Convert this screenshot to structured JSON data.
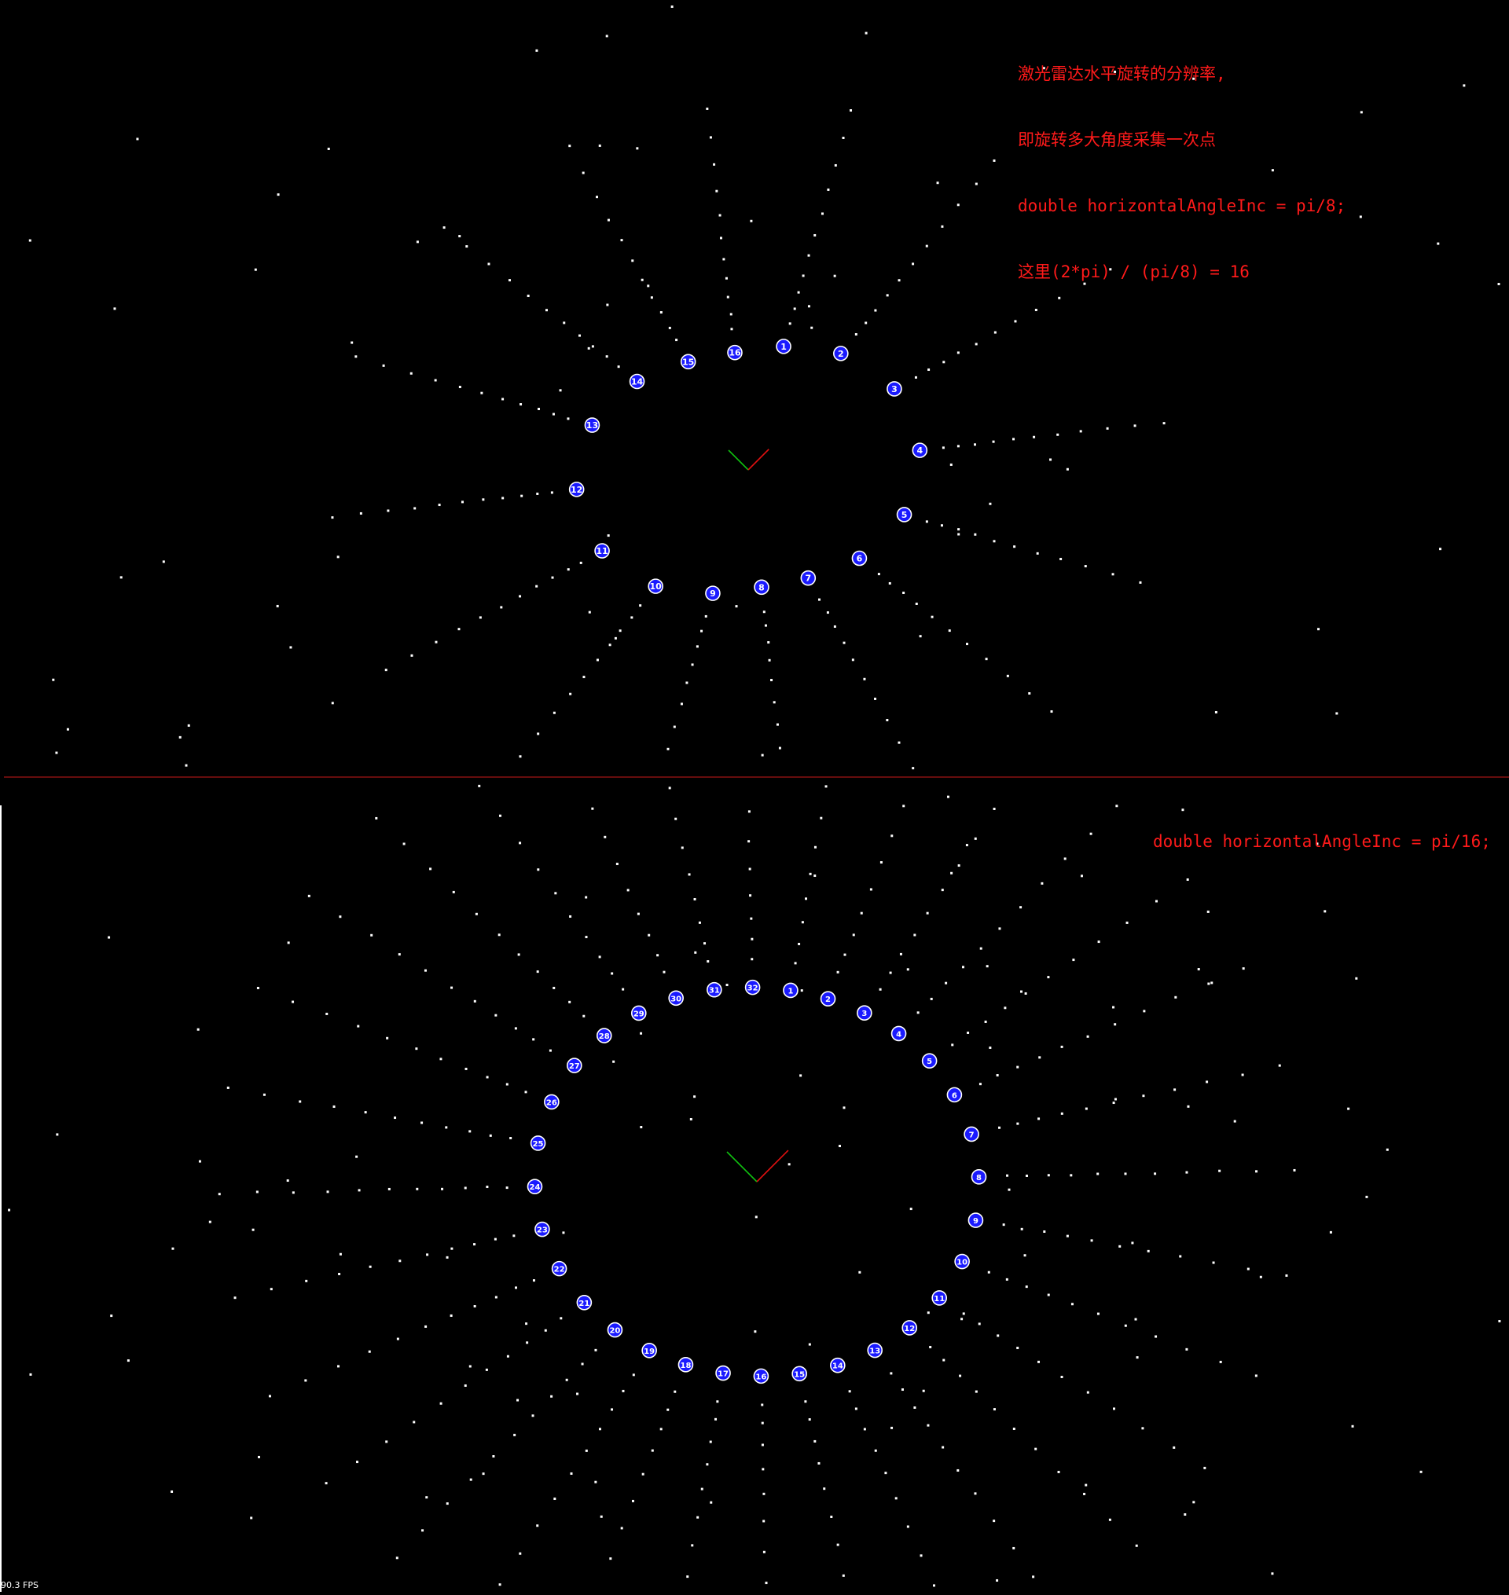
{
  "window": {
    "title": ""
  },
  "annotations": {
    "top_lines": [
      "激光雷达水平旋转的分辨率,",
      "即旋转多大角度采集一次点",
      "double horizontalAngleInc = pi/8;",
      "这里(2*pi) / (pi/8) = 16"
    ],
    "bottom_line": "double horizontalAngleInc = pi/16;"
  },
  "fps_label": "90.3 FPS",
  "colors": {
    "background": "#000000",
    "points": "#ffffff",
    "marker_fill": "#1a1aff",
    "marker_border": "#ffffff",
    "annotation_text": "#ff1a1a",
    "divider": "#cc1a1a",
    "axis_red": "#e01010",
    "axis_green": "#10c010"
  },
  "top_scan": {
    "ring_count": 16,
    "angle_increment": "pi/8"
  },
  "bottom_scan": {
    "ring_count": 32,
    "angle_increment": "pi/16"
  }
}
